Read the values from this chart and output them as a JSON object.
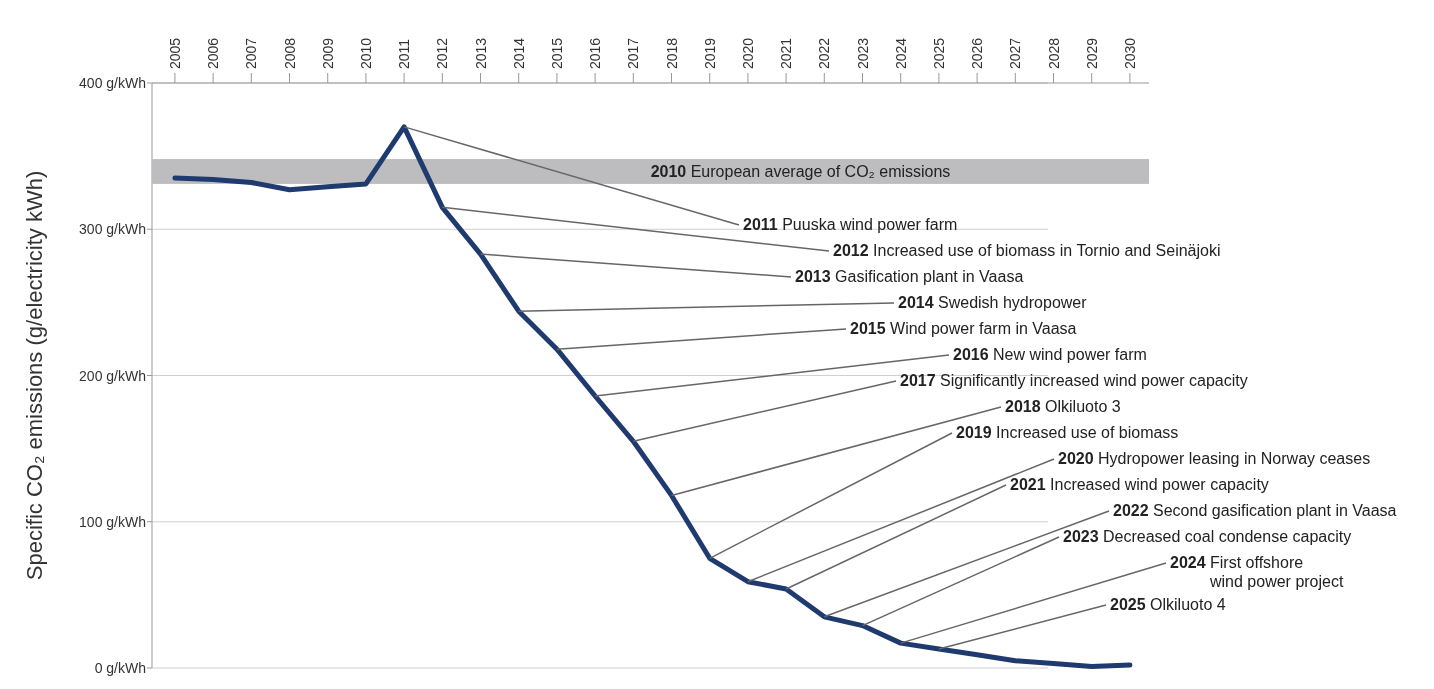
{
  "chart_data": {
    "type": "line",
    "ylabel": "Specific CO₂ emissions (g/electricity kWh)",
    "x": [
      2005,
      2006,
      2007,
      2008,
      2009,
      2010,
      2011,
      2012,
      2013,
      2014,
      2015,
      2016,
      2017,
      2018,
      2019,
      2020,
      2021,
      2022,
      2023,
      2024,
      2025,
      2026,
      2027,
      2028,
      2029,
      2030
    ],
    "series": [
      {
        "color": "#1f3a6e",
        "values": [
          335,
          334,
          332,
          327,
          329,
          331,
          370,
          315,
          283,
          244,
          218,
          186,
          155,
          118,
          75,
          59,
          54,
          35,
          29,
          17,
          13,
          9,
          5,
          3,
          1,
          2
        ]
      }
    ],
    "xlim": [
      2004.4,
      2030.5
    ],
    "xticks": [
      2005,
      2006,
      2007,
      2008,
      2009,
      2010,
      2011,
      2012,
      2013,
      2014,
      2015,
      2016,
      2017,
      2018,
      2019,
      2020,
      2021,
      2022,
      2023,
      2024,
      2025,
      2026,
      2027,
      2028,
      2029,
      2030
    ],
    "ylim": [
      0,
      400
    ],
    "yticks": [
      {
        "value": 0,
        "label": "0 g/kWh"
      },
      {
        "value": 100,
        "label": "100 g/kWh"
      },
      {
        "value": 200,
        "label": "200 g/kWh"
      },
      {
        "value": 300,
        "label": "300 g/kWh"
      },
      {
        "value": 400,
        "label": "400 g/kWh"
      }
    ],
    "grid": "y",
    "marker": "none",
    "line_style": "solid",
    "bands": [
      {
        "axis": "y",
        "from": 331,
        "to": 348,
        "label": "2010 European average of CO₂ emissions",
        "color": "#bdbdbf"
      }
    ],
    "annotations": [
      {
        "text": "2011 Puuska wind power farm",
        "x": 2011,
        "y": 370
      },
      {
        "text": "2012 Increased use of biomass in Tornio and Seinäjoki",
        "x": 2012,
        "y": 315
      },
      {
        "text": "2013 Gasification plant in Vaasa",
        "x": 2013,
        "y": 283
      },
      {
        "text": "2014 Swedish hydropower",
        "x": 2014,
        "y": 244
      },
      {
        "text": "2015 Wind power farm in Vaasa",
        "x": 2015,
        "y": 218
      },
      {
        "text": "2016 New wind power farm",
        "x": 2016,
        "y": 186
      },
      {
        "text": "2017 Significantly increased wind power capacity",
        "x": 2017,
        "y": 155
      },
      {
        "text": "2018 Olkiluoto 3",
        "x": 2018,
        "y": 118
      },
      {
        "text": "2019 Increased use of biomass",
        "x": 2019,
        "y": 75
      },
      {
        "text": "2020 Hydropower leasing in Norway ceases",
        "x": 2020,
        "y": 59
      },
      {
        "text": "2021 Increased wind power capacity",
        "x": 2021,
        "y": 54
      },
      {
        "text": "2022 Second gasification plant in Vaasa",
        "x": 2022,
        "y": 35
      },
      {
        "text": "2023 Decreased coal condense capacity",
        "x": 2023,
        "y": 29
      },
      {
        "text": "2024 First offshore\nwind power project",
        "x": 2024,
        "y": 17
      },
      {
        "text": "2025 Olkiluoto 4",
        "x": 2025,
        "y": 13
      }
    ]
  }
}
